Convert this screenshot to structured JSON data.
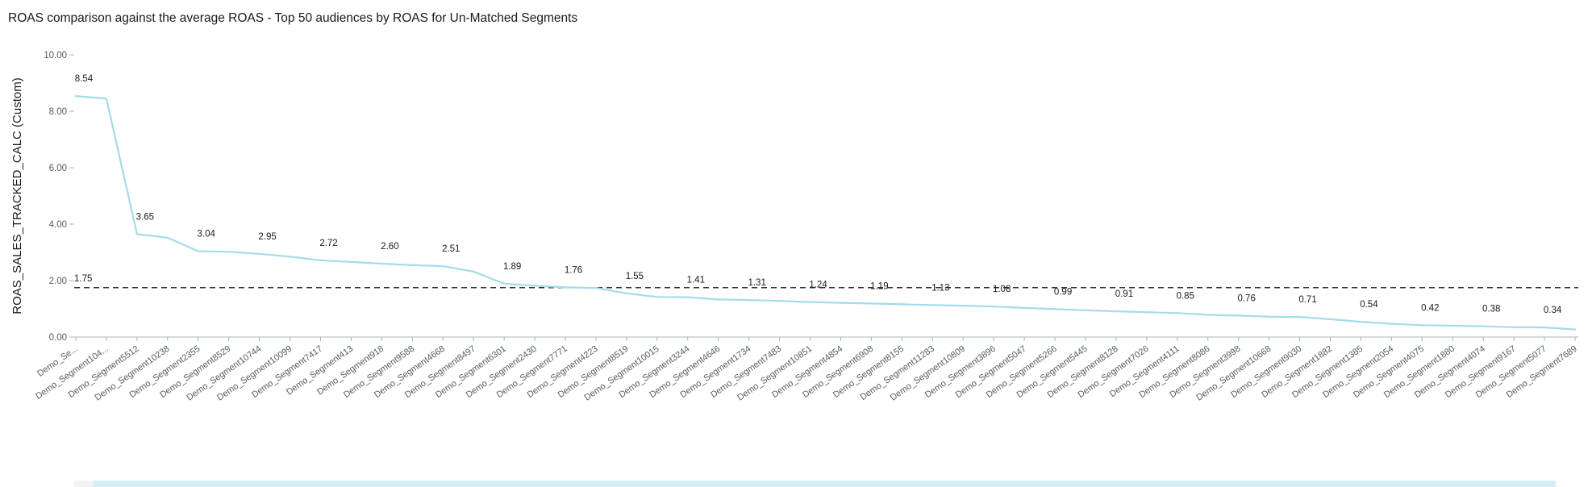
{
  "title": "ROAS comparison against the average ROAS - Top 50 audiences by ROAS for Un-Matched Segments",
  "chart_data": {
    "type": "line",
    "ylabel": "ROAS_SALES_TRACKED_CALC (Custom)",
    "xlabel": "",
    "ylim": [
      0,
      10
    ],
    "yticks": [
      "0.00",
      "2.00",
      "4.00",
      "6.00",
      "8.00",
      "10.00"
    ],
    "grid": false,
    "series_color": "#a5dbea",
    "reference_line": {
      "value": 1.75,
      "label": "1.75",
      "color": "#333333",
      "style": "dashed"
    },
    "categories": [
      "Demo_Se...",
      "Demo_Segment104...",
      "Demo_Segment5512",
      "Demo_Segment10238",
      "Demo_Segment2355",
      "Demo_Segment8529",
      "Demo_Segment10744",
      "Demo_Segment10099",
      "Demo_Segment7417",
      "Demo_Segment413",
      "Demo_Segment918",
      "Demo_Segment9588",
      "Demo_Segment4668",
      "Demo_Segment8497",
      "Demo_Segment6301",
      "Demo_Segment2430",
      "Demo_Segment7771",
      "Demo_Segment4223",
      "Demo_Segment8519",
      "Demo_Segment10015",
      "Demo_Segment3244",
      "Demo_Segment4646",
      "Demo_Segment1734",
      "Demo_Segment7483",
      "Demo_Segment10851",
      "Demo_Segment4854",
      "Demo_Segment6908",
      "Demo_Segment8155",
      "Demo_Segment11283",
      "Demo_Segment10809",
      "Demo_Segment3896",
      "Demo_Segment5047",
      "Demo_Segment5266",
      "Demo_Segment5445",
      "Demo_Segment8128",
      "Demo_Segment7026",
      "Demo_Segment4111",
      "Demo_Segment8086",
      "Demo_Segment3998",
      "Demo_Segment10668",
      "Demo_Segment9030",
      "Demo_Segment1882",
      "Demo_Segment1385",
      "Demo_Segment2054",
      "Demo_Segment4075",
      "Demo_Segment1880",
      "Demo_Segment4074",
      "Demo_Segment9167",
      "Demo_Segment5077",
      "Demo_Segment7689"
    ],
    "values": [
      8.54,
      8.45,
      3.65,
      3.52,
      3.04,
      3.02,
      2.95,
      2.85,
      2.72,
      2.66,
      2.6,
      2.55,
      2.51,
      2.32,
      1.89,
      1.82,
      1.76,
      1.74,
      1.55,
      1.42,
      1.41,
      1.33,
      1.31,
      1.28,
      1.24,
      1.21,
      1.19,
      1.16,
      1.13,
      1.11,
      1.08,
      1.03,
      0.99,
      0.95,
      0.91,
      0.88,
      0.85,
      0.79,
      0.76,
      0.72,
      0.71,
      0.63,
      0.54,
      0.47,
      0.42,
      0.4,
      0.38,
      0.35,
      0.34,
      0.27
    ],
    "data_labels": [
      "8.54",
      "",
      "3.65",
      "",
      "3.04",
      "",
      "2.95",
      "",
      "2.72",
      "",
      "2.60",
      "",
      "2.51",
      "",
      "1.89",
      "",
      "1.76",
      "",
      "1.55",
      "",
      "1.41",
      "",
      "1.31",
      "",
      "1.24",
      "",
      "1.19",
      "",
      "1.13",
      "",
      "1.08",
      "",
      "0.99",
      "",
      "0.91",
      "",
      "0.85",
      "",
      "0.76",
      "",
      "0.71",
      "",
      "0.54",
      "",
      "0.42",
      "",
      "0.38",
      "",
      "0.34",
      ""
    ]
  }
}
